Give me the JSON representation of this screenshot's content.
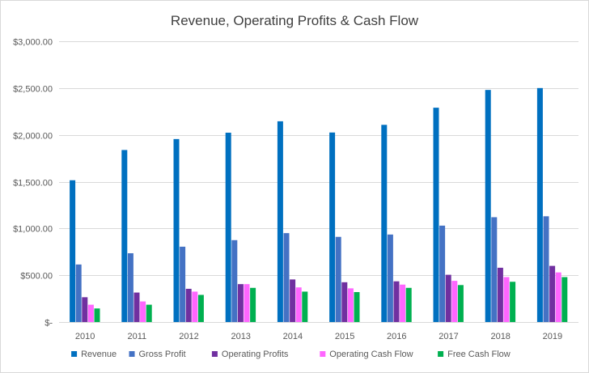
{
  "colors": {
    "grid": "#d9d9d9",
    "axis_text": "#595959",
    "title_text": "#404040"
  },
  "chart_data": {
    "type": "bar",
    "title": "Revenue, Operating Profits & Cash Flow",
    "xlabel": "",
    "ylabel": "",
    "ylim": [
      0,
      3000
    ],
    "yticks": [
      0,
      500,
      1000,
      1500,
      2000,
      2500,
      3000
    ],
    "ytick_labels": [
      "$-",
      "$500.00",
      "$1,000.00",
      "$1,500.00",
      "$2,000.00",
      "$2,500.00",
      "$3,000.00"
    ],
    "grid": true,
    "legend_position": "bottom",
    "categories": [
      "2010",
      "2011",
      "2012",
      "2013",
      "2014",
      "2015",
      "2016",
      "2017",
      "2018",
      "2019"
    ],
    "series": [
      {
        "name": "Revenue",
        "color": "#0070c0",
        "values": [
          1515,
          1838,
          1955,
          2023,
          2145,
          2025,
          2107,
          2290,
          2480,
          2500
        ]
      },
      {
        "name": "Gross Profit",
        "color": "#4472c4",
        "values": [
          615,
          735,
          805,
          875,
          950,
          910,
          935,
          1030,
          1120,
          1130
        ]
      },
      {
        "name": "Operating Profits",
        "color": "#7030a0",
        "values": [
          265,
          315,
          355,
          405,
          455,
          425,
          435,
          505,
          580,
          600
        ]
      },
      {
        "name": "Operating Cash Flow",
        "color": "#ff66ff",
        "values": [
          185,
          220,
          325,
          405,
          370,
          360,
          400,
          440,
          480,
          530
        ]
      },
      {
        "name": "Free Cash Flow",
        "color": "#00b050",
        "values": [
          145,
          185,
          290,
          365,
          325,
          320,
          365,
          395,
          430,
          480
        ]
      }
    ]
  }
}
